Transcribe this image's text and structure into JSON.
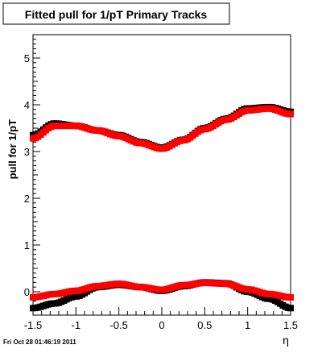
{
  "chart_data": {
    "type": "scatter",
    "title": "Fitted pull for 1/pT  Primary Tracks",
    "xlabel": "η",
    "ylabel": "pull for 1/pT",
    "xlim": [
      -1.5,
      1.5
    ],
    "ylim": [
      -0.5,
      5.5
    ],
    "xticks": [
      -1.5,
      -1,
      -0.5,
      0,
      0.5,
      1,
      1.5
    ],
    "xtick_labels": [
      "-1.5",
      "-1",
      "-0.5",
      "0",
      "0.5",
      "1",
      "1.5"
    ],
    "yticks": [
      0,
      1,
      2,
      3,
      4,
      5
    ],
    "ytick_labels": [
      "0",
      "1",
      "2",
      "3",
      "4",
      "5"
    ],
    "grid": false,
    "legend": "none",
    "timestamp": "Fri Oct 28 01:46:19 2011",
    "series": [
      {
        "color": "#000000",
        "x": [
          -1.5,
          -1.25,
          -1.0,
          -0.75,
          -0.5,
          -0.25,
          0.0,
          0.25,
          0.5,
          0.75,
          1.0,
          1.25,
          1.5
        ],
        "y": [
          3.35,
          3.6,
          3.55,
          3.45,
          3.35,
          3.2,
          3.08,
          3.25,
          3.5,
          3.7,
          3.92,
          3.95,
          3.85
        ]
      },
      {
        "color": "#ff0000",
        "x": [
          -1.5,
          -1.25,
          -1.0,
          -0.75,
          -0.5,
          -0.25,
          0.0,
          0.25,
          0.5,
          0.75,
          1.0,
          1.25,
          1.5
        ],
        "y": [
          3.28,
          3.55,
          3.55,
          3.45,
          3.33,
          3.18,
          3.06,
          3.24,
          3.48,
          3.68,
          3.88,
          3.92,
          3.8
        ]
      },
      {
        "color": "#000000",
        "x": [
          -1.5,
          -1.25,
          -1.0,
          -0.75,
          -0.5,
          -0.25,
          0.0,
          0.25,
          0.5,
          0.75,
          1.0,
          1.25,
          1.5
        ],
        "y": [
          -0.35,
          -0.25,
          -0.1,
          0.1,
          0.15,
          0.1,
          0.02,
          0.12,
          0.2,
          0.18,
          0.0,
          -0.15,
          -0.35
        ]
      },
      {
        "color": "#ff0000",
        "x": [
          -1.5,
          -1.25,
          -1.0,
          -0.75,
          -0.5,
          -0.25,
          0.0,
          0.25,
          0.5,
          0.75,
          1.0,
          1.25,
          1.5
        ],
        "y": [
          -0.12,
          -0.05,
          0.02,
          0.12,
          0.17,
          0.1,
          0.04,
          0.14,
          0.19,
          0.17,
          0.05,
          -0.05,
          -0.12
        ]
      }
    ]
  }
}
